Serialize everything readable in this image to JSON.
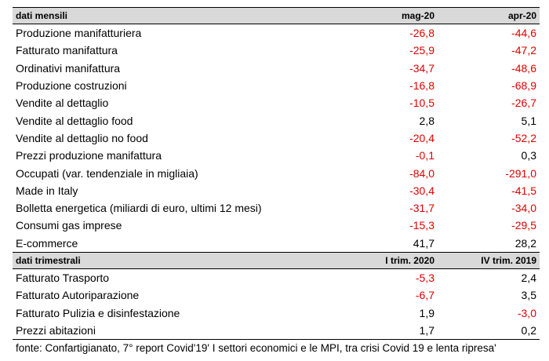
{
  "colors": {
    "negative": "#e00000",
    "positive": "#000000",
    "header_bg": "#d9d9d9"
  },
  "monthly": {
    "header": {
      "label": "dati mensili",
      "col1": "mag-20",
      "col2": "apr-20"
    },
    "rows": [
      {
        "label": "Produzione manifatturiera",
        "v1": "-26,8",
        "v2": "-44,6"
      },
      {
        "label": "Fatturato manifattura",
        "v1": "-25,9",
        "v2": "-47,2"
      },
      {
        "label": "Ordinativi manifattura",
        "v1": "-34,7",
        "v2": "-48,6"
      },
      {
        "label": "Produzione costruzioni",
        "v1": "-16,8",
        "v2": "-68,9"
      },
      {
        "label": "Vendite al dettaglio",
        "v1": "-10,5",
        "v2": "-26,7"
      },
      {
        "label": "Vendite al dettaglio food",
        "v1": "2,8",
        "v2": "5,1"
      },
      {
        "label": "Vendite al dettaglio no food",
        "v1": "-20,4",
        "v2": "-52,2"
      },
      {
        "label": "Prezzi produzione manifattura",
        "v1": "-0,1",
        "v2": "0,3"
      },
      {
        "label": "Occupati (var. tendenziale in migliaia)",
        "v1": "-84,0",
        "v2": "-291,0"
      },
      {
        "label": "Made in Italy",
        "v1": "-30,4",
        "v2": "-41,5"
      },
      {
        "label": "Bolletta energetica (miliardi di euro, ultimi 12 mesi)",
        "v1": "-31,7",
        "v2": "-34,0"
      },
      {
        "label": "Consumi gas imprese",
        "v1": "-15,3",
        "v2": "-29,5"
      },
      {
        "label": "E-commerce",
        "v1": "41,7",
        "v2": "28,2"
      }
    ]
  },
  "quarterly": {
    "header": {
      "label": "dati trimestrali",
      "col1": "I trim. 2020",
      "col2": "IV trim. 2019"
    },
    "rows": [
      {
        "label": "Fatturato Trasporto",
        "v1": "-5,3",
        "v2": "2,4"
      },
      {
        "label": "Fatturato Autoriparazione",
        "v1": "-6,7",
        "v2": "3,5"
      },
      {
        "label": "Fatturato Pulizia e disinfestazione",
        "v1": "1,9",
        "v2": "-3,0"
      },
      {
        "label": "Prezzi abitazioni",
        "v1": "1,7",
        "v2": "0,2"
      }
    ]
  },
  "source": "fonte: Confartigianato, 7° report Covid'19' I settori economici e le MPI, tra crisi Covid 19 e lenta ripresa'"
}
